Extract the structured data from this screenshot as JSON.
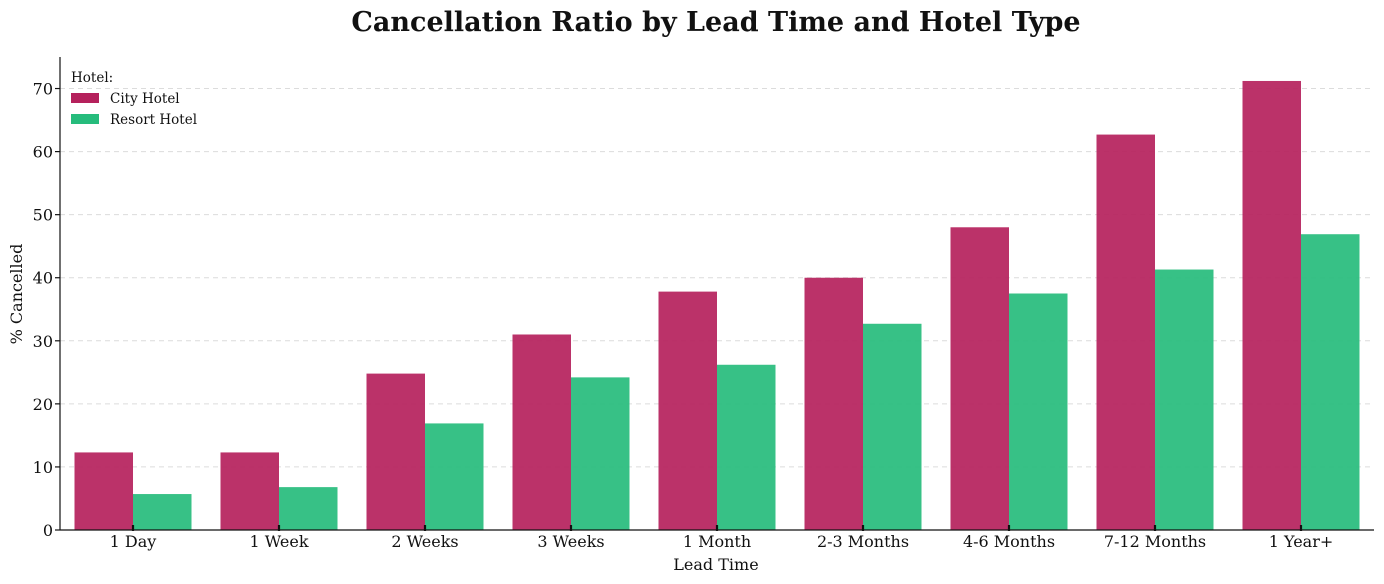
{
  "chart_data": {
    "type": "bar",
    "title": "Cancellation Ratio by Lead Time and Hotel Type",
    "xlabel": "Lead Time",
    "ylabel": "% Cancelled",
    "categories": [
      "1 Day",
      "1 Week",
      "2 Weeks",
      "3 Weeks",
      "1 Month",
      "2-3 Months",
      "4-6 Months",
      "7-12 Months",
      "1 Year+"
    ],
    "ylim": [
      0,
      75
    ],
    "yticks": [
      0,
      10,
      20,
      30,
      40,
      50,
      60,
      70
    ],
    "grid": true,
    "legend": {
      "title": "Hotel:",
      "placement": "top-left"
    },
    "series": [
      {
        "name": "City Hotel",
        "color": "#b5215c",
        "values": [
          12.3,
          12.3,
          24.8,
          31.0,
          37.8,
          40.0,
          48.0,
          62.7,
          71.2
        ]
      },
      {
        "name": "Resort Hotel",
        "color": "#26bc7c",
        "values": [
          5.7,
          6.8,
          16.9,
          24.2,
          26.2,
          32.7,
          37.5,
          41.3,
          46.9
        ]
      }
    ]
  }
}
